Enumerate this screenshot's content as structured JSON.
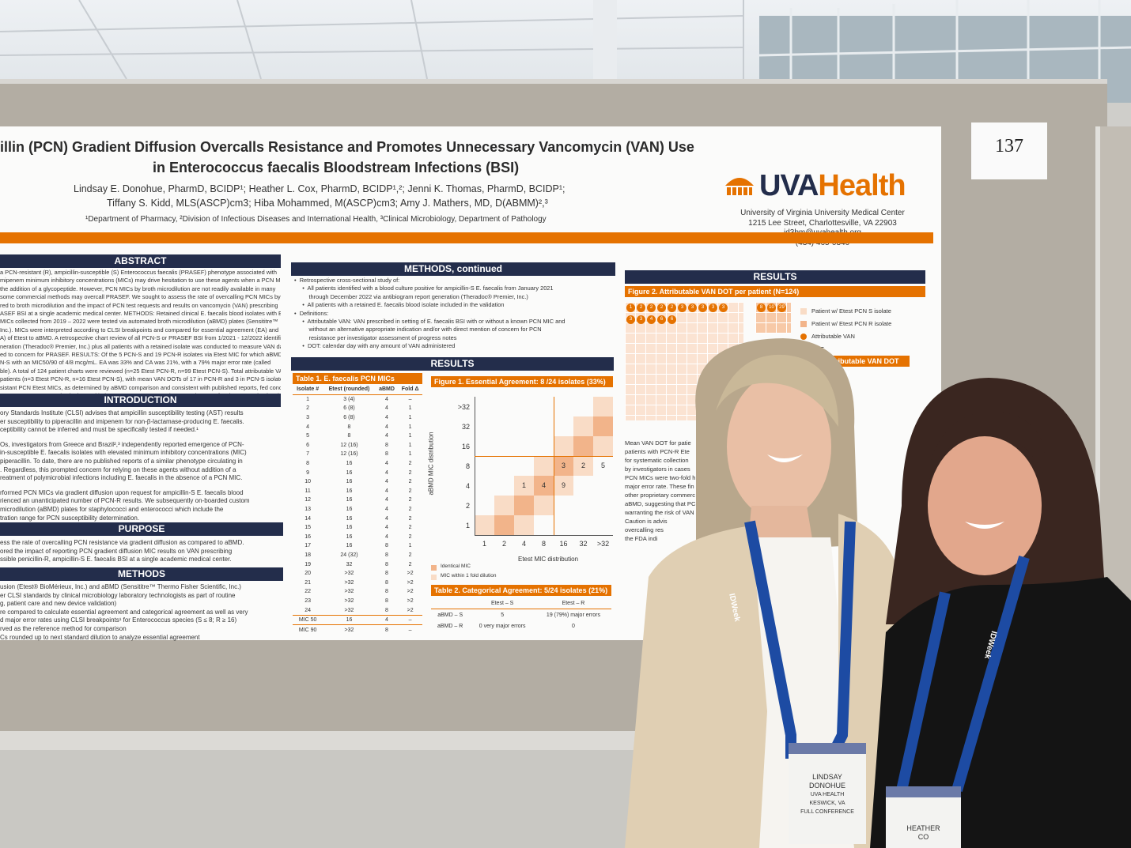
{
  "poster_number": "137",
  "poster": {
    "title_line1": "illin (PCN) Gradient Diffusion Overcalls Resistance and Promotes Unnecessary Vancomycin (VAN) Use",
    "title_line2": "in Enterococcus faecalis Bloodstream Infections (BSI)",
    "authors": [
      "Lindsay E. Donohue, PharmD, BCIDP¹; Heather L. Cox, PharmD, BCIDP¹,²; Jenni K. Thomas, PharmD, BCIDP¹;",
      "Tiffany S. Kidd, MLS(ASCP)cm3; Hiba Mohammed, M(ASCP)cm3; Amy J. Mathers, MD, D(ABMM)²,³"
    ],
    "affiliations": "¹Department of Pharmacy, ²Division of Infectious Diseases and International Health, ³Clinical Microbiology, Department of Pathology",
    "logo_uva": "UVA",
    "logo_health": "Health",
    "contact": [
      "University of Virginia University Medical Center",
      "1215 Lee Street, Charlottesville, VA 22903",
      "id3bm@uvahealth.org",
      "(434) 465-0340"
    ],
    "abstract": {
      "heading": "ABSTRACT",
      "lines": [
        "a PCN-resistant (R), ampicillin-susceptible (S) Enterococcus faecalis (PRASEF) phenotype associated with",
        "mipenem minimum inhibitory concentrations (MICs) may drive hesitation to use these agents when a PCN MIC is",
        "the addition of a glycopeptide. However, PCN MICs by broth microdilution are not readily available in many",
        "some commercial methods may overcall PRASEF. We sought to assess the rate of overcalling PCN MICs by",
        "red to broth microdilution and the impact of PCN test requests and results on vancomycin (VAN) prescribing",
        "ASEF BSI at a single academic medical center. METHODS: Retained clinical E. faecalis blood isolates with Etest®",
        "MICs collected from 2019 – 2022 were tested via automated broth microdilution (aBMD) plates (Sensititre™",
        "Inc.). MICs were interpreted according to CLSI breakpoints and compared for essential agreement (EA) and",
        "A) of Etest to aBMD. A retrospective chart review of all PCN-S or PRASEF BSI from 1/2021 - 12/2022 identified",
        "neration (Theradoc® Premier, Inc.) plus all patients with a retained isolate was conducted to measure VAN days",
        "ed to concern for PRASEF. RESULTS: Of the 5 PCN-S and 19 PCN-R isolates via Etest MIC for which aBMD was",
        "N-S with an MIC50/90 of 4/8 mcg/mL. EA was 33% and CA was 21%, with a 79% major error rate (called",
        "ble). A total of 124 patient charts were reviewed (n=25 Etest PCN-R, n=99 Etest PCN-S). Total attributable VAN",
        "patients (n=3 Etest PCN-R, n=16 Etest PCN-S), with mean VAN DOTs of 17 in PCN-R and 3 in PCN-S isolates.",
        "sistant PCN Etest MICs, as determined by aBMD comparison and consistent with published reports, fed concern",
        "SEF emergence at our institution and led to unnecessary concomitant VAN in 15% of patients. Caution is advised",
        "susceptibility via this method. Inclusion of E. faecalis in the FDA indication for in vitro diagnostic use of benzylPCN",
        "dered."
      ]
    },
    "introduction": {
      "heading": "INTRODUCTION",
      "lines": [
        "ory Standards Institute (CLSI) advises that ampicillin susceptibility testing (AST) results",
        "er susceptibility to piperacillin and imipenem for non-β-lactamase-producing E. faecalis.",
        "ceptibility cannot be inferred and must be specifically tested if needed.¹",
        "",
        "Os, investigators from Greece and Brazil²,³ independently reported emergence of PCN-",
        "in-susceptible E. faecalis isolates with elevated minimum inhibitory concentrations (MIC)",
        "piperacillin. To date, there are no published reports of a similar phenotype circulating in",
        ". Regardless, this prompted concern for relying on these agents without addition of a",
        "reatment of polymicrobial infections including E. faecalis in the absence of a PCN MIC.",
        "",
        "rformed PCN MICs via gradient diffusion upon request for ampicillin-S E. faecalis blood",
        "rienced an unanticipated number of PCN-R results. We subsequently on-boarded custom",
        "microdilution (aBMD) plates for staphylococci and enterococci which include the",
        "tration range for PCN susceptibility determination."
      ]
    },
    "purpose": {
      "heading": "PURPOSE",
      "lines": [
        "ess the rate of overcalling PCN resistance via gradient diffusion as compared to aBMD.",
        "ored the impact of reporting PCN gradient diffusion MIC results on VAN prescribing",
        "ssible penicillin-R, ampicillin-S E. faecalis BSI at a single academic medical center."
      ]
    },
    "methods": {
      "heading": "METHODS",
      "lines": [
        "usion (Etest® BioMérieux, Inc.) and aBMD (Sensititre™ Thermo Fisher Scientific, Inc.)",
        "er CLSI standards by clinical microbiology laboratory technologists as part of routine",
        "g, patient care and new device validation)",
        "re compared to calculate essential agreement and categorical agreement as well as very",
        "d major error rates using CLSI breakpoints¹ for Enterococcus species (S ≤ 8; R ≥ 16)",
        "rved as the reference method for comparison",
        "Cs rounded up to next standard dilution to analyze essential agreement"
      ]
    },
    "methods_continued": {
      "heading": "METHODS, continued",
      "lines": [
        "•  Retrospective cross-sectional study of:",
        "     •  All patients identified with a blood culture positive for ampicillin-S E. faecalis from January 2021",
        "         through December 2022 via antibiogram report generation (Theradoc® Premier, Inc.)",
        "     •  All patients with a retained E. faecalis blood isolate included in the validation",
        "•  Definitions:",
        "     •  Attributable VAN: VAN prescribed in setting of E. faecalis BSI with or without a known PCN MIC and",
        "         without an alternative appropriate indication and/or with direct mention of concern for PCN",
        "         resistance per investigator assessment of progress notes",
        "     •  DOT: calendar day with any amount of VAN administered"
      ]
    },
    "results_heading": "RESULTS",
    "table1": {
      "title": "Table 1. E. faecalis PCN MICs",
      "header": [
        "Isolate #",
        "Etest (rounded)",
        "aBMD",
        "Fold Δ"
      ],
      "rows": [
        [
          "1",
          "3 (4)",
          "4",
          "–"
        ],
        [
          "2",
          "6 (8)",
          "4",
          "1"
        ],
        [
          "3",
          "6 (8)",
          "4",
          "1"
        ],
        [
          "4",
          "8",
          "4",
          "1"
        ],
        [
          "5",
          "8",
          "4",
          "1"
        ],
        [
          "6",
          "12 (16)",
          "8",
          "1"
        ],
        [
          "7",
          "12 (16)",
          "8",
          "1"
        ],
        [
          "8",
          "16",
          "4",
          "2"
        ],
        [
          "9",
          "16",
          "4",
          "2"
        ],
        [
          "10",
          "16",
          "4",
          "2"
        ],
        [
          "11",
          "16",
          "4",
          "2"
        ],
        [
          "12",
          "16",
          "4",
          "2"
        ],
        [
          "13",
          "16",
          "4",
          "2"
        ],
        [
          "14",
          "16",
          "4",
          "2"
        ],
        [
          "15",
          "16",
          "4",
          "2"
        ],
        [
          "16",
          "16",
          "4",
          "2"
        ],
        [
          "17",
          "16",
          "8",
          "1"
        ],
        [
          "18",
          "24 (32)",
          "8",
          "2"
        ],
        [
          "19",
          "32",
          "8",
          "2"
        ],
        [
          "20",
          ">32",
          "8",
          ">2"
        ],
        [
          "21",
          ">32",
          "8",
          ">2"
        ],
        [
          "22",
          ">32",
          "8",
          ">2"
        ],
        [
          "23",
          ">32",
          "8",
          ">2"
        ],
        [
          "24",
          ">32",
          "8",
          ">2"
        ],
        [
          "MIC 50",
          "16",
          "4",
          "–"
        ],
        [
          "MIC 90",
          ">32",
          "8",
          "–"
        ]
      ]
    },
    "figure1": {
      "title": "Figure 1. Essential Agreement: 8 /24 isolates (33%)",
      "y_label": "aBMD MIC distribution",
      "x_label": "Etest MIC distribution",
      "ticks": [
        "1",
        "2",
        "4",
        "8",
        "16",
        "32",
        ">32"
      ],
      "counts": [
        "3",
        "2",
        "5",
        "1",
        "4",
        "9"
      ],
      "legend": [
        "Identical MIC",
        "MIC within 1 fold dilution"
      ]
    },
    "table2": {
      "title": "Table 2. Categorical Agreement: 5/24 isolates (21%)",
      "header": [
        "",
        "Etest – S",
        "Etest – R"
      ],
      "rows": [
        [
          "aBMD – S",
          "5",
          "19 (79%) major errors"
        ],
        [
          "aBMD – R",
          "0 very major errors",
          "0"
        ]
      ]
    },
    "figure2": {
      "title": "Figure 2. Attributable VAN DOT per patient (N=124)",
      "dots": [
        "1",
        "2",
        "2",
        "2",
        "2",
        "3",
        "3",
        "3",
        "3",
        "3",
        "3",
        "3",
        "4",
        "6",
        "6",
        "8",
        "10",
        "29"
      ],
      "legend": [
        "Patient w/ Etest PCN S isolate",
        "Patient w/ Etest PCN R isolate",
        "Attributable VAN",
        "DOT"
      ]
    },
    "table3_title": "3. Attributable VAN DOT Summary",
    "results_lines": [
      "Mean VAN DOT for patie",
      "patients with PCN-R Ete",
      "for systematic collection",
      "by investigators in cases",
      "PCN MICs were two-fold hig",
      "major error rate. These fin",
      "other proprietary commerc",
      "aBMD, suggesting that PC",
      "warranting the risk of VAN",
      "Caution is advis",
      "overcalling res",
      "the FDA indi"
    ]
  },
  "badges": [
    {
      "lanyard": "IDWeek",
      "lines": [
        "LINDSAY",
        "DONOHUE",
        "UVA HEALTH",
        "KESWICK, VA",
        "FULL CONFERENCE"
      ]
    },
    {
      "lanyard": "IDWeek",
      "lines": [
        "HEATHER",
        "CO"
      ]
    }
  ]
}
